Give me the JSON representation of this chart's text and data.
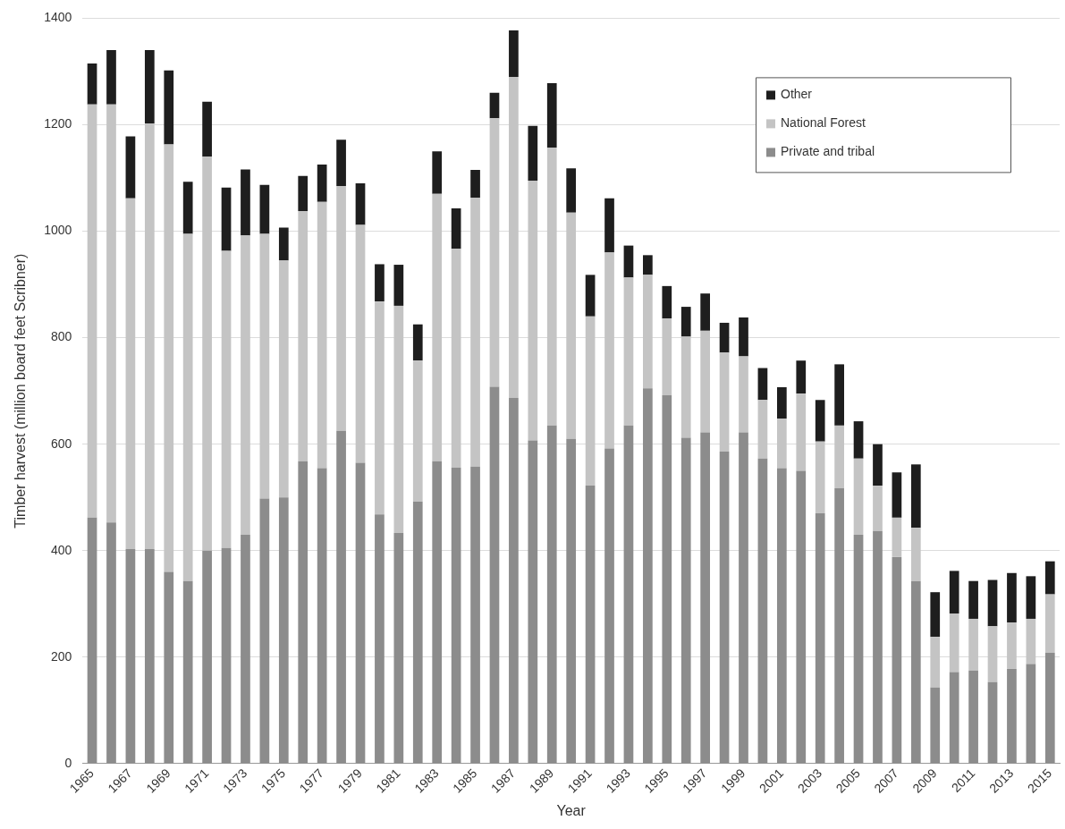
{
  "chart_data": {
    "type": "bar",
    "stacked": true,
    "xlabel": "Year",
    "ylabel": "Timber harvest (million board feet Scribner)",
    "categories": [
      "1965",
      null,
      "1967",
      null,
      "1969",
      null,
      "1971",
      null,
      "1973",
      null,
      "1975",
      null,
      "1977",
      null,
      "1979",
      null,
      "1981",
      null,
      "1983",
      null,
      "1985",
      null,
      "1987",
      null,
      "1989",
      null,
      "1991",
      null,
      "1993",
      null,
      "1995",
      null,
      "1997",
      null,
      "1999",
      null,
      "2001",
      null,
      "2003",
      null,
      "2005",
      null,
      "2007",
      null,
      "2009",
      null,
      "2011",
      null,
      "2013",
      null,
      "2015"
    ],
    "series": [
      {
        "name": "Private and tribal",
        "color": "#8c8c8c",
        "values": [
          462,
          453,
          403,
          403,
          360,
          343,
          400,
          405,
          430,
          498,
          500,
          568,
          555,
          625,
          565,
          468,
          433,
          492,
          568,
          556,
          558,
          708,
          687,
          607,
          635,
          610,
          522,
          592,
          635,
          705,
          692,
          612,
          622,
          586,
          622,
          573,
          555,
          550,
          470,
          517,
          430,
          437,
          388,
          343,
          143,
          172,
          175,
          153,
          178,
          187,
          208
        ]
      },
      {
        "name": "National Forest",
        "color": "#c4c4c4",
        "values": [
          776,
          785,
          659,
          799,
          803,
          652,
          740,
          558,
          562,
          497,
          445,
          470,
          500,
          460,
          447,
          400,
          427,
          265,
          502,
          411,
          505,
          504,
          603,
          488,
          522,
          425,
          318,
          368,
          278,
          213,
          144,
          190,
          191,
          186,
          143,
          110,
          93,
          145,
          135,
          118,
          143,
          85,
          74,
          100,
          95,
          110,
          97,
          105,
          87,
          85,
          110
        ]
      },
      {
        "name": "Other",
        "color": "#1e1e1e",
        "values": [
          77,
          102,
          116,
          138,
          139,
          98,
          103,
          119,
          124,
          92,
          62,
          66,
          70,
          87,
          78,
          70,
          77,
          68,
          80,
          76,
          52,
          48,
          87,
          103,
          121,
          83,
          78,
          102,
          60,
          37,
          61,
          56,
          70,
          56,
          73,
          60,
          59,
          62,
          78,
          115,
          70,
          78,
          85,
          119,
          84,
          80,
          71,
          87,
          93,
          80,
          62
        ]
      }
    ],
    "ylim": [
      0,
      1400
    ],
    "yticks": [
      0,
      200,
      400,
      600,
      800,
      1000,
      1200,
      1400
    ],
    "grid": "y",
    "legend": "top right"
  }
}
